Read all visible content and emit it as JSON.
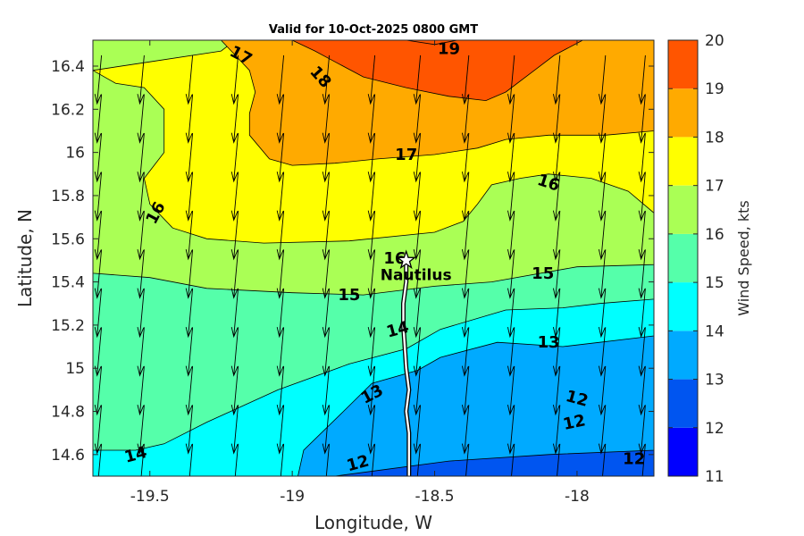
{
  "chart_data": {
    "type": "contour",
    "title": "Valid for 10-Oct-2025 0800 GMT",
    "xlabel": "Longitude, W",
    "ylabel": "Latitude, N",
    "xlim": [
      -19.7,
      -17.73
    ],
    "ylim": [
      14.5,
      16.52
    ],
    "xticks": [
      -19.5,
      -19,
      -18.5,
      -18
    ],
    "xtick_labels": [
      "-19.5",
      "-19",
      "-18.5",
      "-18"
    ],
    "yticks": [
      14.6,
      14.8,
      15,
      15.2,
      15.4,
      15.6,
      15.8,
      16,
      16.2,
      16.4
    ],
    "ytick_labels": [
      "14.6",
      "14.8",
      "15",
      "15.2",
      "15.4",
      "15.6",
      "15.8",
      "16",
      "16.2",
      "16.4"
    ],
    "colorbar": {
      "label": "Wind Speed, kts",
      "levels": [
        11,
        12,
        13,
        14,
        15,
        16,
        17,
        18,
        19,
        20
      ],
      "level_labels": [
        "11",
        "12",
        "13",
        "14",
        "15",
        "16",
        "17",
        "18",
        "19",
        "20"
      ],
      "colors": [
        "#0000ff",
        "#0055f0",
        "#00aaff",
        "#00ffff",
        "#55ffaa",
        "#aaff55",
        "#ffff00",
        "#ffaa00",
        "#ff5500"
      ]
    },
    "regions": [
      {
        "level": 11,
        "points": [
          [
            -19.7,
            14.5
          ],
          [
            -17.73,
            14.5
          ],
          [
            -17.73,
            16.52
          ],
          [
            -19.7,
            16.52
          ]
        ]
      },
      {
        "level": 12,
        "points": [
          [
            -19.7,
            14.5
          ],
          [
            -17.73,
            14.5
          ],
          [
            -17.73,
            16.52
          ],
          [
            -19.7,
            16.52
          ]
        ]
      },
      {
        "level": 13,
        "points": [
          [
            -19.7,
            14.5
          ],
          [
            -18.85,
            14.5
          ],
          [
            -18.68,
            14.53
          ],
          [
            -18.45,
            14.57
          ],
          [
            -18.1,
            14.6
          ],
          [
            -17.73,
            14.62
          ],
          [
            -17.73,
            16.52
          ],
          [
            -19.7,
            16.52
          ]
        ]
      },
      {
        "level": 14,
        "points": [
          [
            -19.7,
            14.5
          ],
          [
            -18.98,
            14.5
          ],
          [
            -18.96,
            14.62
          ],
          [
            -18.82,
            14.8
          ],
          [
            -18.72,
            14.93
          ],
          [
            -18.56,
            14.99
          ],
          [
            -18.48,
            15.05
          ],
          [
            -18.28,
            15.12
          ],
          [
            -18.05,
            15.1
          ],
          [
            -17.92,
            15.12
          ],
          [
            -17.73,
            15.15
          ],
          [
            -17.73,
            16.52
          ],
          [
            -19.7,
            16.52
          ]
        ]
      },
      {
        "level": 15,
        "points": [
          [
            -19.7,
            14.62
          ],
          [
            -19.55,
            14.62
          ],
          [
            -19.45,
            14.65
          ],
          [
            -19.3,
            14.75
          ],
          [
            -19.05,
            14.9
          ],
          [
            -18.8,
            15.02
          ],
          [
            -18.6,
            15.09
          ],
          [
            -18.48,
            15.18
          ],
          [
            -18.25,
            15.27
          ],
          [
            -18.05,
            15.28
          ],
          [
            -17.92,
            15.3
          ],
          [
            -17.73,
            15.32
          ],
          [
            -17.73,
            16.52
          ],
          [
            -19.7,
            16.52
          ]
        ]
      },
      {
        "level": 16,
        "points": [
          [
            -19.7,
            15.44
          ],
          [
            -19.5,
            15.42
          ],
          [
            -19.3,
            15.37
          ],
          [
            -19.0,
            15.35
          ],
          [
            -18.75,
            15.34
          ],
          [
            -18.5,
            15.38
          ],
          [
            -18.3,
            15.4
          ],
          [
            -18.0,
            15.47
          ],
          [
            -17.73,
            15.48
          ],
          [
            -17.73,
            16.52
          ],
          [
            -19.7,
            16.52
          ]
        ]
      },
      {
        "level": 17,
        "points": [
          [
            -19.7,
            16.38
          ],
          [
            -19.5,
            16.42
          ],
          [
            -19.25,
            16.47
          ],
          [
            -19.2,
            16.52
          ],
          [
            -17.73,
            16.52
          ],
          [
            -17.73,
            15.72
          ],
          [
            -17.82,
            15.82
          ],
          [
            -17.95,
            15.88
          ],
          [
            -18.1,
            15.9
          ],
          [
            -18.2,
            15.88
          ],
          [
            -18.3,
            15.85
          ],
          [
            -18.35,
            15.76
          ],
          [
            -18.4,
            15.68
          ],
          [
            -18.5,
            15.63
          ],
          [
            -18.8,
            15.59
          ],
          [
            -19.1,
            15.58
          ],
          [
            -19.3,
            15.6
          ],
          [
            -19.42,
            15.65
          ],
          [
            -19.5,
            15.76
          ],
          [
            -19.52,
            15.88
          ],
          [
            -19.45,
            16.0
          ],
          [
            -19.45,
            16.2
          ],
          [
            -19.52,
            16.3
          ],
          [
            -19.62,
            16.32
          ]
        ]
      },
      {
        "level": 18,
        "points": [
          [
            -19.25,
            16.52
          ],
          [
            -17.73,
            16.52
          ],
          [
            -17.73,
            16.1
          ],
          [
            -17.9,
            16.08
          ],
          [
            -18.1,
            16.08
          ],
          [
            -18.25,
            16.06
          ],
          [
            -18.35,
            16.02
          ],
          [
            -18.5,
            15.99
          ],
          [
            -18.7,
            15.97
          ],
          [
            -18.85,
            15.95
          ],
          [
            -19.0,
            15.94
          ],
          [
            -19.08,
            15.97
          ],
          [
            -19.15,
            16.08
          ],
          [
            -19.15,
            16.18
          ],
          [
            -19.13,
            16.28
          ],
          [
            -19.15,
            16.38
          ],
          [
            -19.2,
            16.45
          ]
        ]
      },
      {
        "level": 19,
        "points": [
          [
            -19.0,
            16.52
          ],
          [
            -17.98,
            16.52
          ],
          [
            -18.08,
            16.45
          ],
          [
            -18.15,
            16.38
          ],
          [
            -18.25,
            16.28
          ],
          [
            -18.32,
            16.24
          ],
          [
            -18.45,
            16.26
          ],
          [
            -18.6,
            16.3
          ],
          [
            -18.75,
            16.35
          ],
          [
            -18.85,
            16.42
          ],
          [
            -18.92,
            16.47
          ]
        ]
      },
      {
        "level": 20,
        "points": [
          [
            -18.6,
            16.52
          ],
          [
            -18.42,
            16.52
          ],
          [
            -18.5,
            16.5
          ]
        ]
      }
    ],
    "contour_labels": [
      {
        "text": "17",
        "lon": -19.18,
        "lat": 16.45,
        "angle": 28
      },
      {
        "text": "18",
        "lon": -18.9,
        "lat": 16.35,
        "angle": 48
      },
      {
        "text": "19",
        "lon": -18.45,
        "lat": 16.48,
        "angle": 0
      },
      {
        "text": "17",
        "lon": -18.6,
        "lat": 15.99,
        "angle": 0
      },
      {
        "text": "16",
        "lon": -19.48,
        "lat": 15.72,
        "angle": -62
      },
      {
        "text": "16",
        "lon": -18.1,
        "lat": 15.86,
        "angle": 18
      },
      {
        "text": "16",
        "lon": -18.64,
        "lat": 15.51,
        "angle": 0
      },
      {
        "text": "15",
        "lon": -18.8,
        "lat": 15.34,
        "angle": 0
      },
      {
        "text": "15",
        "lon": -18.12,
        "lat": 15.44,
        "angle": 0
      },
      {
        "text": "14",
        "lon": -18.63,
        "lat": 15.18,
        "angle": -15
      },
      {
        "text": "13",
        "lon": -18.1,
        "lat": 15.12,
        "angle": 0
      },
      {
        "text": "13",
        "lon": -18.72,
        "lat": 14.88,
        "angle": -28
      },
      {
        "text": "12",
        "lon": -18.0,
        "lat": 14.86,
        "angle": 15
      },
      {
        "text": "12",
        "lon": -18.01,
        "lat": 14.75,
        "angle": -12
      },
      {
        "text": "12",
        "lon": -17.8,
        "lat": 14.58,
        "angle": 0
      },
      {
        "text": "12",
        "lon": -18.77,
        "lat": 14.56,
        "angle": -15
      },
      {
        "text": "14",
        "lon": -19.55,
        "lat": 14.6,
        "angle": -15
      }
    ],
    "station": {
      "name": "Nautilus",
      "lon": -18.6,
      "lat": 15.5
    },
    "track": [
      [
        -18.6,
        15.5
      ],
      [
        -18.6,
        15.4
      ],
      [
        -18.61,
        15.3
      ],
      [
        -18.61,
        15.2
      ],
      [
        -18.6,
        15.0
      ],
      [
        -18.59,
        14.9
      ],
      [
        -18.6,
        14.8
      ],
      [
        -18.59,
        14.7
      ],
      [
        -18.59,
        14.5
      ]
    ],
    "wind_vectors": {
      "lons": [
        -19.67,
        -19.52,
        -19.35,
        -19.19,
        -19.03,
        -18.87,
        -18.71,
        -18.55,
        -18.38,
        -18.22,
        -18.06,
        -17.9,
        -17.76
      ],
      "lats": [
        16.45,
        16.27,
        16.09,
        15.91,
        15.73,
        15.55,
        15.37,
        15.19,
        15.01,
        14.83,
        14.65
      ],
      "u": -0.09,
      "v": -1.0
    }
  }
}
